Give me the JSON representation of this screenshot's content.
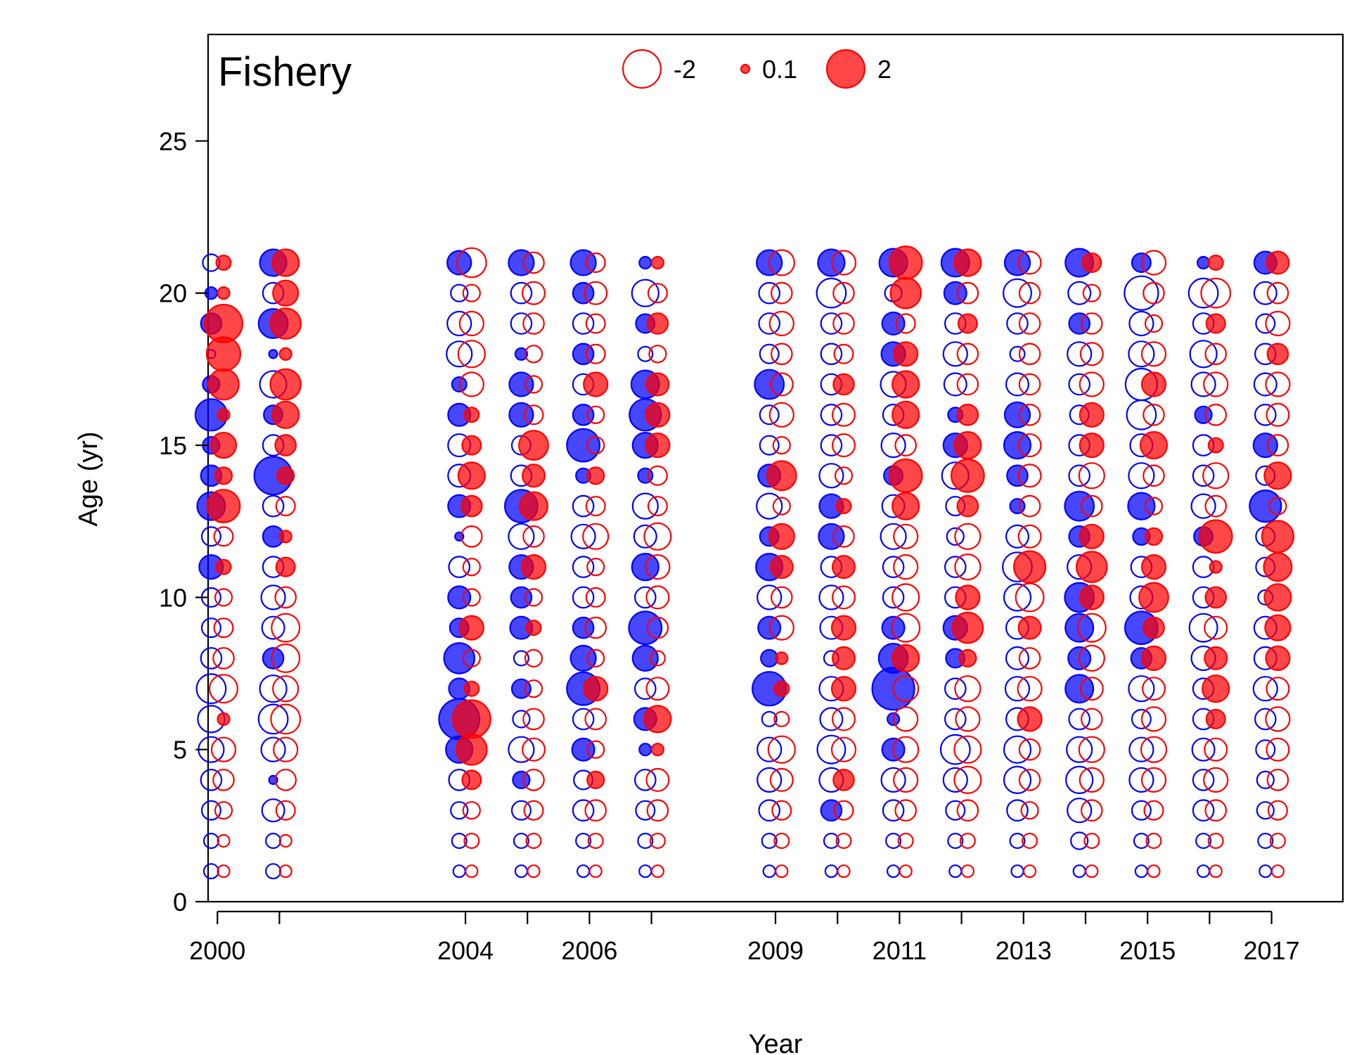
{
  "chart_data": {
    "type": "scatter",
    "title": "Fishery",
    "xlabel": "Year",
    "ylabel": "Age (yr)",
    "xlim": [
      1999.85,
      2018.15
    ],
    "ylim": [
      0,
      28.5
    ],
    "x_tick_positions": [
      2000,
      2001,
      2004,
      2005,
      2006,
      2007,
      2009,
      2010,
      2011,
      2012,
      2013,
      2014,
      2015,
      2016,
      2017
    ],
    "x_tick_labels": [
      "2000",
      "2004",
      "2006",
      "2009",
      "2011",
      "2013",
      "2015",
      "2017"
    ],
    "y_ticks": [
      0,
      5,
      10,
      15,
      20,
      25
    ],
    "legend": {
      "position": "top-center",
      "entries": [
        {
          "label": "-2",
          "value": -2,
          "style": "open"
        },
        {
          "label": "0.1",
          "value": 0.1,
          "style": "filled"
        },
        {
          "label": "2",
          "value": 2,
          "style": "filled"
        }
      ]
    },
    "colors": {
      "primary": "#ff0000",
      "secondary": "#0000ff"
    },
    "years": [
      2000,
      2001,
      2004,
      2005,
      2006,
      2007,
      2009,
      2010,
      2011,
      2012,
      2013,
      2014,
      2015,
      2016,
      2017
    ],
    "ages": [
      1,
      2,
      3,
      4,
      5,
      6,
      7,
      8,
      9,
      10,
      11,
      12,
      13,
      14,
      15,
      16,
      17,
      18,
      19,
      20,
      21
    ],
    "series": [
      {
        "color": "#0000ff",
        "offset": -0.1,
        "values": [
          [
            -0.3,
            -0.3,
            -0.5,
            -0.6,
            -0.9,
            -1.0,
            -1.2,
            -0.6,
            -0.5,
            -0.5,
            0.8,
            -0.5,
            1.1,
            0.6,
            0.4,
            1.4,
            0.4,
            -0.1,
            0.6,
            0.2,
            -0.4
          ],
          [
            -0.3,
            -0.3,
            -0.7,
            0.1,
            -0.8,
            -1.2,
            -1.0,
            0.6,
            -0.7,
            -0.8,
            -0.6,
            0.6,
            -0.6,
            2.0,
            -0.6,
            0.5,
            -1.0,
            0.1,
            1.2,
            -0.6,
            1.0
          ],
          [
            -0.2,
            -0.3,
            -0.4,
            -0.6,
            1.0,
            2.3,
            0.6,
            1.3,
            0.5,
            0.7,
            -0.6,
            0.1,
            0.7,
            -0.7,
            -0.7,
            0.7,
            0.3,
            -0.9,
            -0.8,
            -0.4,
            0.8
          ],
          [
            -0.2,
            -0.3,
            -0.5,
            0.4,
            -0.9,
            -0.4,
            0.5,
            -0.3,
            0.7,
            0.6,
            0.8,
            -0.9,
            1.5,
            -0.6,
            -0.5,
            0.8,
            0.8,
            0.2,
            -0.6,
            -0.6,
            0.9
          ],
          [
            -0.2,
            -0.3,
            -0.6,
            -0.5,
            0.7,
            -0.6,
            1.5,
            0.9,
            0.6,
            -0.6,
            -0.6,
            -0.8,
            -0.6,
            0.3,
            1.5,
            0.6,
            -0.6,
            0.6,
            -0.6,
            0.6,
            0.9
          ],
          [
            -0.2,
            -0.3,
            -0.5,
            -0.6,
            0.2,
            0.7,
            -0.6,
            0.9,
            1.5,
            -0.6,
            1.0,
            -0.7,
            -0.9,
            0.3,
            0.9,
            1.4,
            1.1,
            -0.3,
            0.5,
            -1.0,
            0.2
          ],
          [
            -0.2,
            -0.3,
            -0.6,
            -0.8,
            -0.8,
            -0.3,
            1.6,
            0.4,
            0.7,
            -0.8,
            1.0,
            0.5,
            -0.9,
            0.7,
            -0.5,
            -0.5,
            1.2,
            -0.5,
            -0.6,
            -0.6,
            0.9
          ],
          [
            -0.2,
            -0.3,
            0.6,
            -0.8,
            -1.1,
            -0.7,
            -0.8,
            -0.3,
            -0.7,
            -0.8,
            -0.6,
            0.9,
            0.8,
            -0.8,
            -0.6,
            -0.6,
            -0.6,
            -0.6,
            -0.6,
            -1.2,
            1.0
          ],
          [
            -0.2,
            -0.3,
            -0.6,
            -0.8,
            0.7,
            0.2,
            2.5,
            1.2,
            0.7,
            -0.6,
            -0.6,
            -0.9,
            -0.7,
            0.5,
            -0.8,
            -0.6,
            -0.9,
            0.8,
            0.7,
            -0.4,
            1.1
          ],
          [
            -0.2,
            -0.3,
            -0.5,
            -0.8,
            -1.2,
            -0.6,
            -0.6,
            0.5,
            0.8,
            -0.6,
            -0.6,
            -0.4,
            -0.5,
            -1.0,
            0.8,
            0.3,
            -0.7,
            -0.8,
            -0.6,
            0.7,
            1.1
          ],
          [
            -0.2,
            -0.3,
            -0.6,
            -1.0,
            -1.0,
            -0.7,
            -0.8,
            -0.7,
            -0.7,
            -1.0,
            -1.2,
            -0.7,
            0.3,
            0.6,
            1.0,
            0.9,
            -0.7,
            -0.3,
            -0.6,
            -1.1,
            0.9
          ],
          [
            -0.2,
            -0.4,
            -0.8,
            -1.0,
            -0.9,
            -0.6,
            1.1,
            0.7,
            1.1,
            1.2,
            -0.8,
            0.6,
            1.2,
            -0.6,
            -0.6,
            -0.5,
            -0.6,
            -0.8,
            0.6,
            -0.7,
            1.1
          ],
          [
            -0.2,
            -0.3,
            -0.5,
            -0.8,
            -0.8,
            -0.5,
            -0.9,
            0.6,
            1.5,
            -0.7,
            -0.6,
            0.4,
            1.0,
            -0.9,
            -0.7,
            -1.2,
            -1.4,
            -0.9,
            -0.8,
            -1.6,
            0.5
          ],
          [
            -0.2,
            -0.3,
            -0.6,
            -0.6,
            -0.7,
            -0.6,
            -0.6,
            -0.8,
            -1.1,
            -0.6,
            -0.6,
            0.5,
            -0.8,
            -0.6,
            -0.6,
            0.4,
            -0.8,
            -1.0,
            -0.6,
            -1.2,
            0.2
          ],
          [
            -0.2,
            -0.3,
            -0.4,
            -0.4,
            -0.5,
            -0.6,
            -0.8,
            -0.7,
            -0.7,
            -0.3,
            -0.5,
            -0.5,
            1.4,
            -0.5,
            0.8,
            -0.6,
            -0.7,
            -0.6,
            -0.5,
            -0.7,
            0.7
          ]
        ]
      },
      {
        "color": "#ff0000",
        "offset": 0.1,
        "values": [
          [
            -0.2,
            -0.2,
            -0.4,
            -0.6,
            -0.8,
            0.2,
            -1.1,
            -0.6,
            -0.5,
            -0.4,
            0.3,
            -0.5,
            1.5,
            0.4,
            0.9,
            0.2,
            1.3,
            1.6,
            2.0,
            0.2,
            0.3
          ],
          [
            -0.2,
            -0.2,
            -0.5,
            -0.6,
            -0.8,
            -1.2,
            -0.9,
            -1.1,
            -1.1,
            -0.6,
            0.5,
            0.2,
            -0.5,
            0.4,
            0.6,
            1.0,
            1.3,
            0.2,
            1.3,
            0.9,
            1.0
          ],
          [
            -0.2,
            -0.3,
            -0.4,
            0.5,
            1.3,
            2.0,
            0.3,
            -0.4,
            0.8,
            -0.4,
            -0.4,
            -0.6,
            0.6,
            1.0,
            0.5,
            0.3,
            -0.8,
            -1.0,
            -0.8,
            -0.4,
            -1.2
          ],
          [
            -0.2,
            -0.3,
            -0.5,
            -0.6,
            -0.7,
            -0.6,
            -0.4,
            -0.4,
            0.3,
            -0.4,
            0.8,
            -0.6,
            1.1,
            0.7,
            1.2,
            -0.5,
            -0.4,
            -0.4,
            -0.6,
            -0.7,
            -0.6
          ],
          [
            -0.2,
            -0.3,
            -0.6,
            0.4,
            -0.4,
            -0.6,
            0.8,
            -0.4,
            -0.6,
            -0.5,
            -0.4,
            -0.9,
            -0.5,
            0.4,
            -0.4,
            -0.4,
            0.8,
            -0.5,
            -0.5,
            -0.7,
            -0.5
          ],
          [
            -0.2,
            -0.3,
            -0.6,
            -0.7,
            0.2,
            1.0,
            -0.7,
            -0.3,
            -0.6,
            -0.7,
            -0.8,
            -1.0,
            -0.5,
            -0.5,
            0.8,
            0.8,
            0.7,
            -0.4,
            0.6,
            -0.5,
            0.2
          ],
          [
            -0.2,
            -0.3,
            -0.5,
            -0.7,
            -1.0,
            -0.3,
            0.3,
            0.2,
            -0.8,
            -0.6,
            0.7,
            0.9,
            -0.4,
            1.2,
            -0.4,
            -0.8,
            -0.7,
            -0.6,
            -0.8,
            -0.6,
            -0.9
          ],
          [
            -0.2,
            -0.3,
            -0.5,
            0.6,
            -0.8,
            -0.7,
            0.8,
            0.7,
            0.8,
            -0.7,
            0.7,
            -0.6,
            0.3,
            -0.4,
            -0.7,
            -0.7,
            0.6,
            -0.5,
            -0.6,
            -0.6,
            -0.8
          ],
          [
            -0.2,
            -0.3,
            -0.6,
            -0.8,
            -0.9,
            -0.8,
            -0.9,
            1.0,
            -1.1,
            -1.0,
            -0.8,
            -0.8,
            1.0,
            1.5,
            -0.6,
            1.0,
            1.0,
            0.8,
            -0.5,
            1.3,
            1.5
          ],
          [
            -0.2,
            -0.3,
            -0.6,
            -1.0,
            -1.0,
            -0.8,
            -0.9,
            0.4,
            1.3,
            0.8,
            -0.9,
            -0.9,
            0.6,
            1.5,
            1.0,
            0.6,
            -0.6,
            -0.6,
            0.5,
            -0.6,
            1.0
          ],
          [
            -0.2,
            -0.3,
            -0.4,
            -0.6,
            -0.6,
            0.8,
            -0.8,
            -0.6,
            0.7,
            -1.1,
            1.4,
            -0.7,
            -0.6,
            -0.7,
            -0.7,
            -0.6,
            -0.6,
            -0.6,
            -0.6,
            -0.6,
            -0.7
          ],
          [
            -0.2,
            -0.3,
            -0.6,
            -0.8,
            -0.9,
            -0.6,
            -0.7,
            -0.9,
            -1.1,
            0.8,
            1.3,
            0.8,
            -0.6,
            -0.9,
            0.8,
            0.8,
            -0.8,
            -0.7,
            -0.6,
            -0.4,
            0.5
          ],
          [
            -0.2,
            -0.3,
            -0.5,
            -0.8,
            -0.9,
            -0.8,
            -0.7,
            0.8,
            0.6,
            1.2,
            0.8,
            0.4,
            -0.4,
            -0.6,
            1.0,
            -0.6,
            0.8,
            -0.8,
            -0.4,
            -0.6,
            -0.8
          ],
          [
            -0.2,
            -0.3,
            -0.6,
            -0.8,
            -0.7,
            0.5,
            1.0,
            0.7,
            -0.7,
            0.6,
            0.2,
            1.5,
            -0.6,
            -0.9,
            0.3,
            -0.6,
            -0.8,
            -0.6,
            0.5,
            -1.2,
            0.3
          ],
          [
            -0.2,
            -0.3,
            -0.5,
            -0.6,
            -0.7,
            -0.8,
            -0.7,
            0.8,
            0.9,
            1.0,
            1.1,
            1.4,
            -0.4,
            1.0,
            -0.6,
            -0.7,
            -0.8,
            0.6,
            -0.8,
            -0.6,
            0.7
          ]
        ]
      }
    ]
  }
}
